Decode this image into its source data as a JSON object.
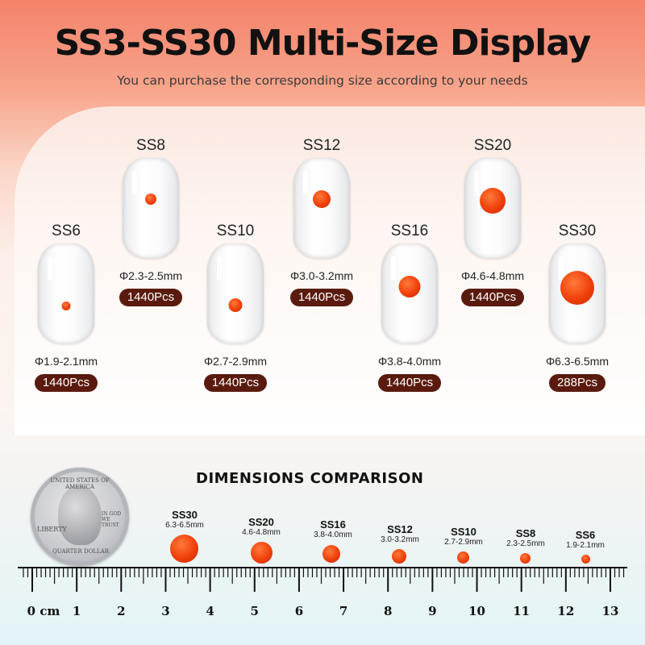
{
  "title": "SS3-SS30 Multi-Size Display",
  "subtitle": "You can purchase the corresponding size according to your needs",
  "colors": {
    "gem": "#f0400a",
    "badge": "#5a1b0e"
  },
  "sizes": [
    {
      "label": "SS6",
      "dim": "Φ1.9-2.1mm",
      "qty": "1440Pcs"
    },
    {
      "label": "SS8",
      "dim": "Φ2.3-2.5mm",
      "qty": "1440Pcs"
    },
    {
      "label": "SS10",
      "dim": "Φ2.7-2.9mm",
      "qty": "1440Pcs"
    },
    {
      "label": "SS12",
      "dim": "Φ3.0-3.2mm",
      "qty": "1440Pcs"
    },
    {
      "label": "SS16",
      "dim": "Φ3.8-4.0mm",
      "qty": "1440Pcs"
    },
    {
      "label": "SS20",
      "dim": "Φ4.6-4.8mm",
      "qty": "1440Pcs"
    },
    {
      "label": "SS30",
      "dim": "Φ6.3-6.5mm",
      "qty": "288Pcs"
    }
  ],
  "comparison": {
    "title": "DIMENSIONS COMPARISON",
    "items": [
      {
        "label": "SS30",
        "range": "6.3-6.5mm"
      },
      {
        "label": "SS20",
        "range": "4.6-4.8mm"
      },
      {
        "label": "SS16",
        "range": "3.8-4.0mm"
      },
      {
        "label": "SS12",
        "range": "3.0-3.2mm"
      },
      {
        "label": "SS10",
        "range": "2.7-2.9mm"
      },
      {
        "label": "SS8",
        "range": "2.3-2.5mm"
      },
      {
        "label": "SS6",
        "range": "1.9-2.1mm"
      }
    ]
  },
  "coin": {
    "top_text": "UNITED STATES OF AMERICA",
    "bottom_text": "QUARTER DOLLAR",
    "liberty": "LIBERTY",
    "motto": "IN GOD WE TRUST"
  },
  "ruler": {
    "unit": "cm",
    "labels": [
      "0 cm",
      "1",
      "2",
      "3",
      "4",
      "5",
      "6",
      "7",
      "8",
      "9",
      "10",
      "11",
      "12",
      "13"
    ]
  }
}
